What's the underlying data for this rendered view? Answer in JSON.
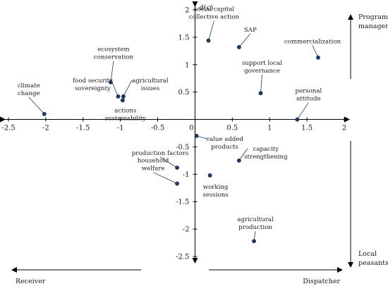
{
  "chart_data": {
    "type": "scatter",
    "title": "",
    "xlabel": "",
    "ylabel": "d(c)",
    "xlim": [
      -2.5,
      2
    ],
    "ylim": [
      -2.5,
      2
    ],
    "x_ticks": [
      "-2.5",
      "-2",
      "-1.5",
      "-1",
      "-0.5",
      "0",
      "0.5",
      "1",
      "1.5",
      "2"
    ],
    "y_ticks": [
      "2",
      "1.5",
      "1",
      "0.5",
      "0",
      "-0.5",
      "-1",
      "-1.5",
      "-2",
      "-2.5"
    ],
    "points": [
      {
        "label": [
          "climate",
          "change"
        ],
        "x": -2.02,
        "y": 0.1
      },
      {
        "label": [
          "ecosystem",
          "conservation"
        ],
        "x": -1.13,
        "y": 0.68
      },
      {
        "label": [
          "food security",
          "sovereignty"
        ],
        "x": -1.03,
        "y": 0.42
      },
      {
        "label": [
          "agricultural",
          "issues"
        ],
        "x": -0.96,
        "y": 0.42
      },
      {
        "label": [
          "actions",
          "sustainability"
        ],
        "x": -0.97,
        "y": 0.35
      },
      {
        "label": [
          "social capital",
          "collective action"
        ],
        "x": 0.18,
        "y": 1.44
      },
      {
        "label": [
          "SAP"
        ],
        "x": 0.59,
        "y": 1.32
      },
      {
        "label": [
          "commercialization"
        ],
        "x": 1.65,
        "y": 1.13
      },
      {
        "label": [
          "support local",
          "governance"
        ],
        "x": 0.88,
        "y": 0.48
      },
      {
        "label": [
          "personal",
          "attitude"
        ],
        "x": 1.37,
        "y": 0.0
      },
      {
        "label": [
          "value added",
          "products"
        ],
        "x": 0.02,
        "y": -0.3
      },
      {
        "label": [
          "production factors"
        ],
        "x": -0.24,
        "y": -0.88
      },
      {
        "label": [
          "household",
          "welfare"
        ],
        "x": -0.24,
        "y": -1.17
      },
      {
        "label": [
          "capacity",
          "strengthening"
        ],
        "x": 0.59,
        "y": -0.75
      },
      {
        "label": [
          "working",
          "sessions"
        ],
        "x": 0.2,
        "y": -1.02
      },
      {
        "label": [
          "agricultural",
          "production"
        ],
        "x": 0.79,
        "y": -2.22
      }
    ],
    "annotations": {
      "top_right": [
        "Program",
        "managers"
      ],
      "bottom_right": [
        "Local",
        "peasants"
      ],
      "bottom_left": "Receiver",
      "bottom_right_arrow": "Dispatcher"
    },
    "grid": false,
    "legend": "none",
    "colors": {
      "point": "#1f3a5f",
      "axis": "#000000"
    }
  }
}
